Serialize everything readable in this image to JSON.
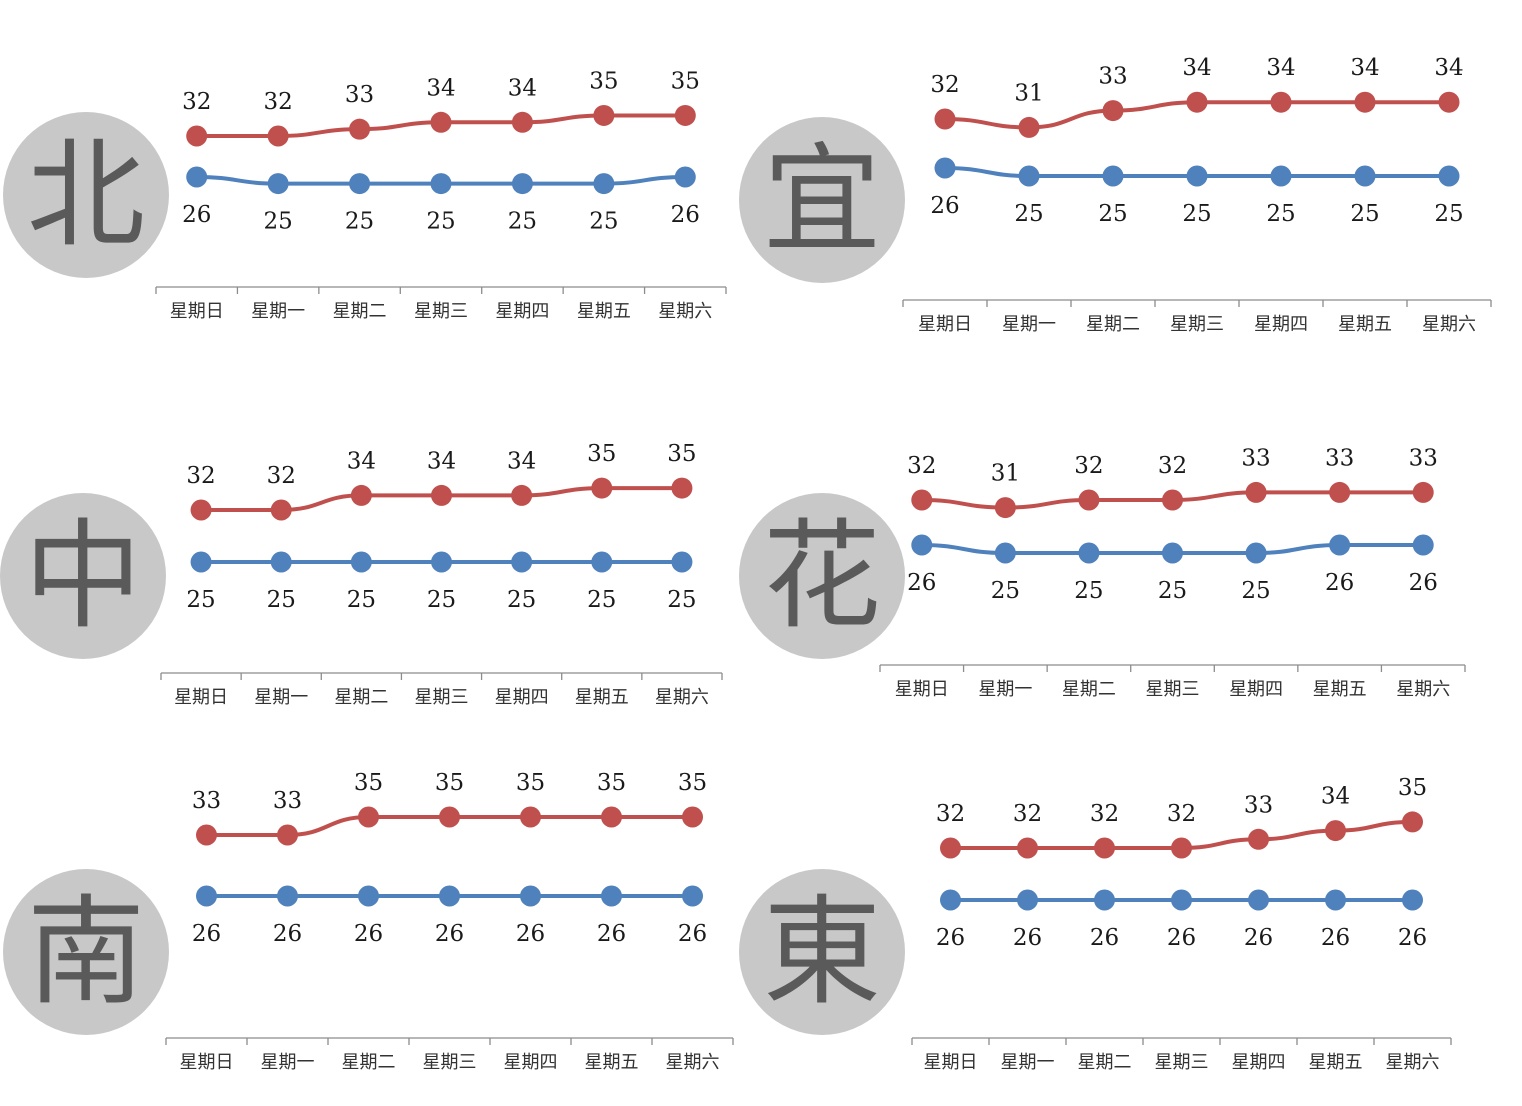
{
  "colors": {
    "high": "#c0504d",
    "low": "#4f81bd",
    "badge": "#c8c8c8",
    "axis": "#8c8c8c"
  },
  "chart_data": [
    {
      "type": "line",
      "region": "北",
      "categories": [
        "星期日",
        "星期一",
        "星期二",
        "星期三",
        "星期四",
        "星期五",
        "星期六"
      ],
      "series": [
        {
          "role": "high",
          "values": [
            32,
            32,
            33,
            34,
            34,
            35,
            35
          ]
        },
        {
          "role": "low",
          "values": [
            26,
            25,
            25,
            25,
            25,
            25,
            26
          ]
        }
      ]
    },
    {
      "type": "line",
      "region": "宜",
      "categories": [
        "星期日",
        "星期一",
        "星期二",
        "星期三",
        "星期四",
        "星期五",
        "星期六"
      ],
      "series": [
        {
          "role": "high",
          "values": [
            32,
            31,
            33,
            34,
            34,
            34,
            34
          ]
        },
        {
          "role": "low",
          "values": [
            26,
            25,
            25,
            25,
            25,
            25,
            25
          ]
        }
      ]
    },
    {
      "type": "line",
      "region": "中",
      "categories": [
        "星期日",
        "星期一",
        "星期二",
        "星期三",
        "星期四",
        "星期五",
        "星期六"
      ],
      "series": [
        {
          "role": "high",
          "values": [
            32,
            32,
            34,
            34,
            34,
            35,
            35
          ]
        },
        {
          "role": "low",
          "values": [
            25,
            25,
            25,
            25,
            25,
            25,
            25
          ]
        }
      ]
    },
    {
      "type": "line",
      "region": "花",
      "categories": [
        "星期日",
        "星期一",
        "星期二",
        "星期三",
        "星期四",
        "星期五",
        "星期六"
      ],
      "series": [
        {
          "role": "high",
          "values": [
            32,
            31,
            32,
            32,
            33,
            33,
            33
          ]
        },
        {
          "role": "low",
          "values": [
            26,
            25,
            25,
            25,
            25,
            26,
            26
          ]
        }
      ]
    },
    {
      "type": "line",
      "region": "南",
      "categories": [
        "星期日",
        "星期一",
        "星期二",
        "星期三",
        "星期四",
        "星期五",
        "星期六"
      ],
      "series": [
        {
          "role": "high",
          "values": [
            33,
            33,
            35,
            35,
            35,
            35,
            35
          ]
        },
        {
          "role": "low",
          "values": [
            26,
            26,
            26,
            26,
            26,
            26,
            26
          ]
        }
      ]
    },
    {
      "type": "line",
      "region": "東",
      "categories": [
        "星期日",
        "星期一",
        "星期二",
        "星期三",
        "星期四",
        "星期五",
        "星期六"
      ],
      "series": [
        {
          "role": "high",
          "values": [
            32,
            32,
            32,
            32,
            33,
            34,
            35
          ]
        },
        {
          "role": "low",
          "values": [
            26,
            26,
            26,
            26,
            26,
            26,
            26
          ]
        }
      ]
    }
  ]
}
